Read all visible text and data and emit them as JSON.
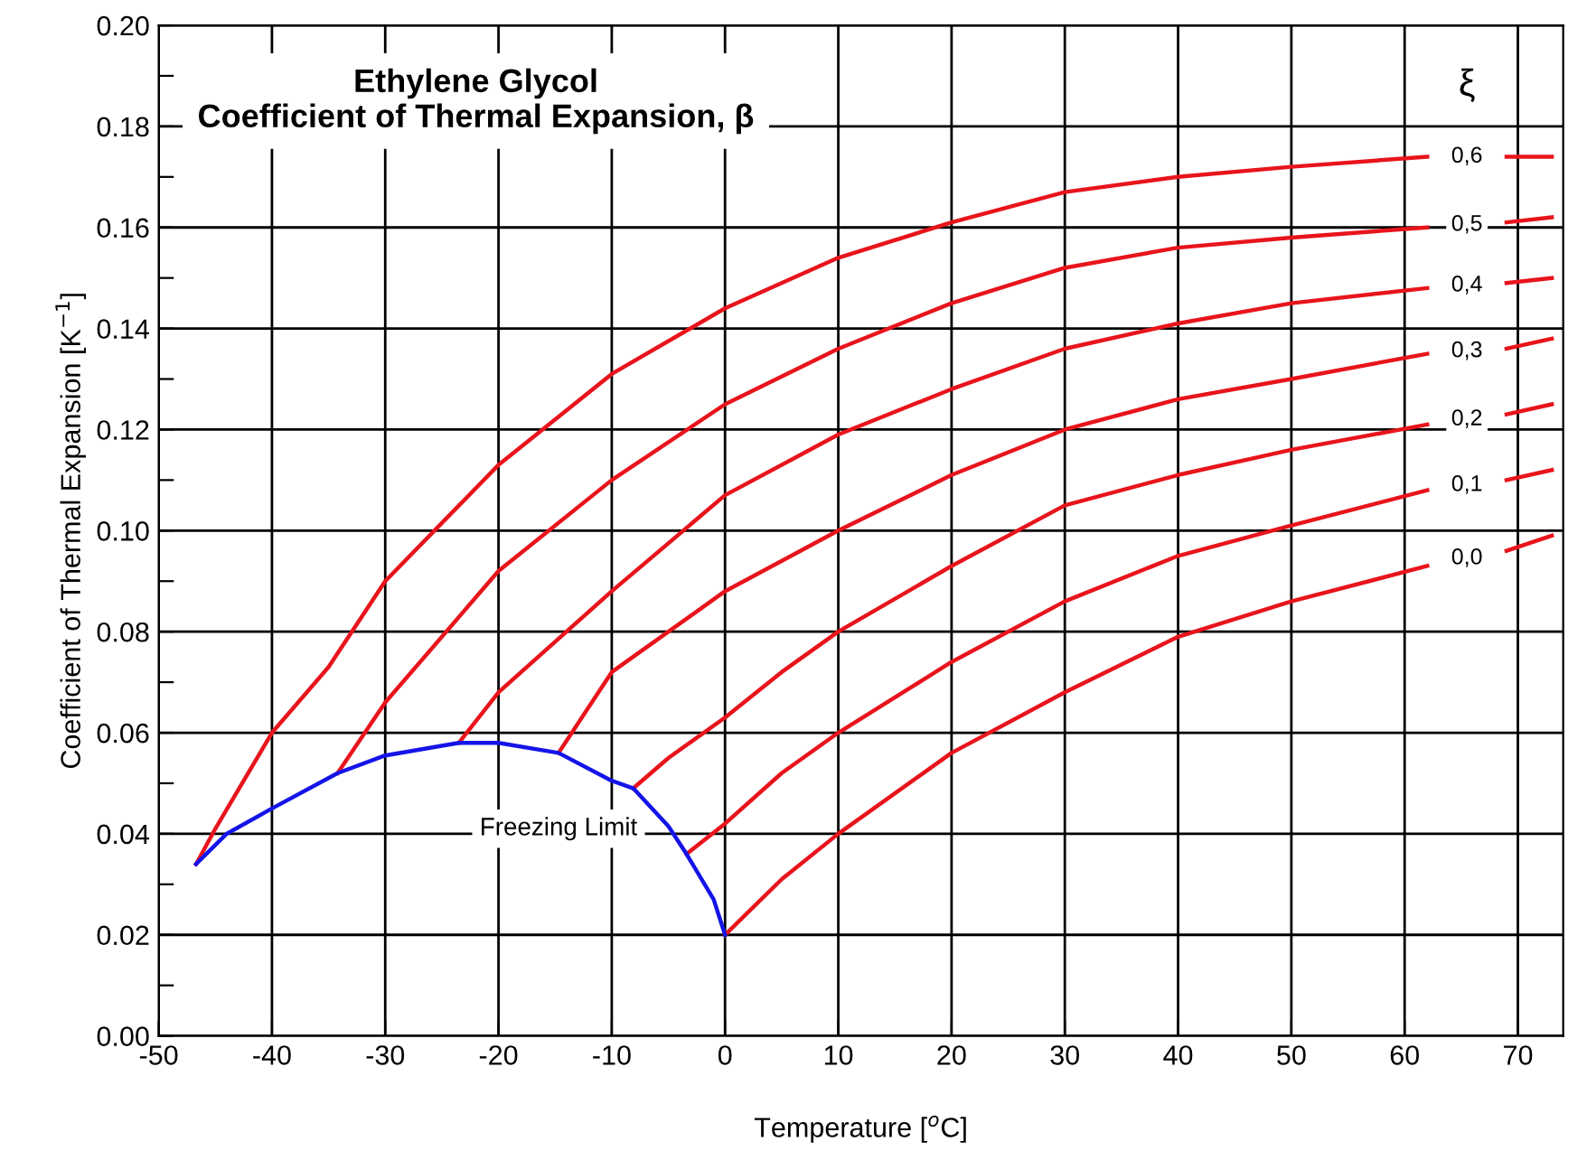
{
  "chart_data": {
    "type": "line",
    "title": "Ethylene Glycol",
    "subtitle": "Coefficient of Thermal Expansion, β",
    "xlabel": "Temperature [$^{o}$C]",
    "ylabel": "Coefficient of Thermal Expansion [K$^{−1}$]",
    "legend_title": "ξ",
    "xlim": [
      -50,
      74
    ],
    "xticks": [
      -50,
      -40,
      -30,
      -20,
      -10,
      0,
      10,
      20,
      30,
      40,
      50,
      60,
      70
    ],
    "ylim": [
      0,
      0.2
    ],
    "yticks": [
      {
        "value": 0,
        "label": "0.00"
      },
      {
        "value": 0.01,
        "label": null
      },
      {
        "value": 0.02,
        "label": "0.02"
      },
      {
        "value": 0.03,
        "label": null
      },
      {
        "value": 0.04,
        "label": "0.04"
      },
      {
        "value": 0.05,
        "label": null
      },
      {
        "value": 0.06,
        "label": "0.06"
      },
      {
        "value": 0.07,
        "label": null
      },
      {
        "value": 0.08,
        "label": "0.08"
      },
      {
        "value": 0.09,
        "label": null
      },
      {
        "value": 0.1,
        "label": "0.10"
      },
      {
        "value": 0.11,
        "label": null
      },
      {
        "value": 0.12,
        "label": "0.12"
      },
      {
        "value": 0.13,
        "label": null
      },
      {
        "value": 0.14,
        "label": "0.14"
      },
      {
        "value": 0.15,
        "label": null
      },
      {
        "value": 0.16,
        "label": "0.16"
      },
      {
        "value": 0.17,
        "label": null
      },
      {
        "value": 0.18,
        "label": "0.18"
      },
      {
        "value": 0.19,
        "label": null
      },
      {
        "value": 0.2,
        "label": "0.20"
      }
    ],
    "grid": true,
    "line_style": "solid",
    "marker": "none",
    "series": [
      {
        "name": "0,6",
        "color": "#e8141c",
        "x": [
          -46.7,
          -45,
          -40,
          -35,
          -30,
          -20,
          -10,
          0,
          10,
          20,
          30,
          40,
          50,
          62,
          65.5,
          69,
          73
        ],
        "values": [
          0.034,
          0.041,
          0.06,
          0.073,
          0.09,
          0.113,
          0.131,
          0.144,
          0.154,
          0.161,
          0.167,
          0.17,
          0.172,
          0.174,
          null,
          0.174,
          0.174
        ]
      },
      {
        "name": "0,5",
        "color": "#e8141c",
        "x": [
          -34.2,
          -30,
          -20,
          -10,
          0,
          10,
          20,
          30,
          40,
          50,
          62,
          65.5,
          69,
          73
        ],
        "values": [
          0.052,
          0.066,
          0.092,
          0.11,
          0.125,
          0.136,
          0.145,
          0.152,
          0.156,
          0.158,
          0.16,
          null,
          0.161,
          0.162
        ]
      },
      {
        "name": "0,4",
        "color": "#e8141c",
        "x": [
          -23.5,
          -20,
          -10,
          0,
          10,
          20,
          30,
          40,
          50,
          62,
          65.5,
          69,
          73
        ],
        "values": [
          0.058,
          0.068,
          0.088,
          0.107,
          0.119,
          0.128,
          0.136,
          0.141,
          0.145,
          0.148,
          null,
          0.149,
          0.15
        ]
      },
      {
        "name": "0,3",
        "color": "#e8141c",
        "x": [
          -14.7,
          -10,
          0,
          10,
          20,
          30,
          40,
          50,
          62,
          65.5,
          69,
          73
        ],
        "values": [
          0.056,
          0.072,
          0.088,
          0.1,
          0.111,
          0.12,
          0.126,
          0.13,
          0.135,
          null,
          0.136,
          0.138
        ]
      },
      {
        "name": "0,2",
        "color": "#e8141c",
        "x": [
          -8.1,
          -5,
          0,
          5,
          10,
          20,
          30,
          40,
          50,
          62,
          65.5,
          69,
          73
        ],
        "values": [
          0.049,
          0.055,
          0.063,
          0.072,
          0.08,
          0.093,
          0.105,
          0.111,
          0.116,
          0.121,
          null,
          0.123,
          0.125
        ]
      },
      {
        "name": "0,1",
        "color": "#e8141c",
        "x": [
          -3.4,
          0,
          5,
          10,
          20,
          30,
          40,
          50,
          62,
          65.5,
          69,
          73
        ],
        "values": [
          0.036,
          0.042,
          0.052,
          0.06,
          0.074,
          0.086,
          0.095,
          0.101,
          0.108,
          null,
          0.11,
          0.112
        ]
      },
      {
        "name": "0,0",
        "color": "#e8141c",
        "x": [
          0,
          5,
          10,
          20,
          30,
          40,
          50,
          62,
          65.5,
          69,
          73
        ],
        "values": [
          0.02,
          0.031,
          0.04,
          0.056,
          0.068,
          0.079,
          0.086,
          0.093,
          null,
          0.096,
          0.099
        ]
      },
      {
        "name": "Freezing Limit",
        "color": "#1414e8",
        "x": [
          -46.7,
          -44,
          -40,
          -34.2,
          -30,
          -23.5,
          -20,
          -14.7,
          -10,
          -8.1,
          -5,
          -3.4,
          -1,
          0
        ],
        "values": [
          0.034,
          0.04,
          0.045,
          0.052,
          0.0555,
          0.058,
          0.058,
          0.056,
          0.0505,
          0.049,
          0.0415,
          0.036,
          0.027,
          0.02
        ]
      }
    ]
  }
}
